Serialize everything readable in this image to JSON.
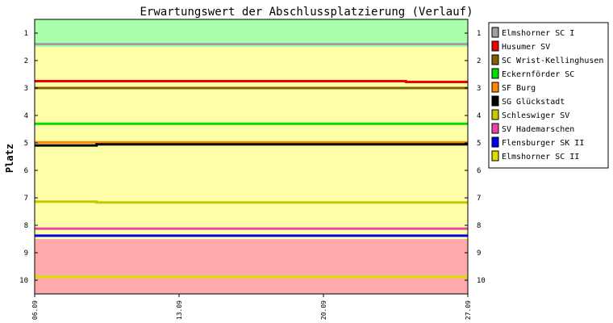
{
  "chart_data": {
    "type": "line",
    "title": "Erwartungswert der Abschlussplatzierung (Verlauf)",
    "ylabel": "Platz",
    "xlabel": "",
    "x_ticks": [
      "06.09",
      "13.09",
      "20.09",
      "27.09"
    ],
    "y_ticks": [
      "1",
      "2",
      "3",
      "4",
      "5",
      "6",
      "7",
      "8",
      "9",
      "10"
    ],
    "ylim": [
      10.5,
      0.5
    ],
    "y_inverted": true,
    "xlim": [
      "06.09",
      "27.09"
    ],
    "grid": false,
    "legend_position": "right",
    "zones": [
      {
        "from": 0.5,
        "to": 1.5,
        "color": "#aaffaa"
      },
      {
        "from": 1.5,
        "to": 8.5,
        "color": "#ffffaa"
      },
      {
        "from": 8.5,
        "to": 10.5,
        "color": "#ffaaaa"
      }
    ],
    "series": [
      {
        "name": "Elmshorner SC I",
        "color": "#a0a0a0",
        "points": [
          [
            "06.09",
            1.4
          ],
          [
            "27.09",
            1.4
          ]
        ]
      },
      {
        "name": "Husumer SV",
        "color": "#ee0000",
        "points": [
          [
            "06.09",
            2.75
          ],
          [
            "24.09",
            2.75
          ],
          [
            "24.09",
            2.78
          ],
          [
            "27.09",
            2.78
          ]
        ]
      },
      {
        "name": "SC Wrist-Kellinghusen",
        "color": "#806000",
        "points": [
          [
            "06.09",
            3.0
          ],
          [
            "27.09",
            3.0
          ]
        ]
      },
      {
        "name": "Eckernförder SC",
        "color": "#00dd00",
        "points": [
          [
            "06.09",
            4.3
          ],
          [
            "27.09",
            4.3
          ]
        ]
      },
      {
        "name": "SF Burg",
        "color": "#ff8800",
        "points": [
          [
            "06.09",
            4.98
          ],
          [
            "27.09",
            4.98
          ]
        ]
      },
      {
        "name": "SG Glückstadt",
        "color": "#000000",
        "points": [
          [
            "06.09",
            5.09
          ],
          [
            "09.09",
            5.09
          ],
          [
            "09.09",
            5.05
          ],
          [
            "27.09",
            5.05
          ]
        ]
      },
      {
        "name": "Schleswiger SV",
        "color": "#c8c800",
        "points": [
          [
            "06.09",
            7.14
          ],
          [
            "09.09",
            7.14
          ],
          [
            "09.09",
            7.17
          ],
          [
            "27.09",
            7.17
          ]
        ]
      },
      {
        "name": "SV Hademarschen",
        "color": "#ee44aa",
        "points": [
          [
            "06.09",
            8.12
          ],
          [
            "27.09",
            8.12
          ]
        ]
      },
      {
        "name": "Flensburger SK II",
        "color": "#0000ee",
        "points": [
          [
            "06.09",
            8.38
          ],
          [
            "27.09",
            8.38
          ]
        ]
      },
      {
        "name": "Elmshorner SC II",
        "color": "#dddd00",
        "points": [
          [
            "06.09",
            9.88
          ],
          [
            "27.09",
            9.88
          ]
        ]
      }
    ]
  }
}
